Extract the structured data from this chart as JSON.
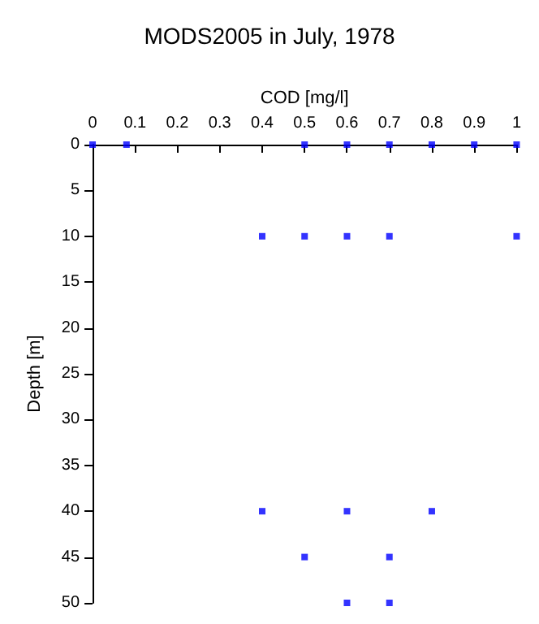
{
  "chart_data": {
    "type": "scatter",
    "title": "MODS2005 in July, 1978",
    "xlabel": "COD [mg/l]",
    "ylabel": "Depth [m]",
    "series": [
      {
        "color": "#0000ff",
        "x": [
          0,
          0.08,
          0.5,
          0.6,
          0.7,
          0.8,
          0.9,
          1.0,
          0.4,
          0.5,
          0.6,
          0.7,
          1.0,
          0.4,
          0.6,
          0.8,
          0.5,
          0.7,
          0.6,
          0.7
        ],
        "values": [
          0,
          0,
          0,
          0,
          0,
          0,
          0,
          0,
          10,
          10,
          10,
          10,
          10,
          40,
          40,
          40,
          45,
          45,
          50,
          50
        ]
      }
    ],
    "xlim": [
      0,
      1
    ],
    "xticks": [
      0,
      0.1,
      0.2,
      0.3,
      0.4,
      0.5,
      0.6,
      0.7,
      0.8,
      0.9,
      1
    ],
    "ylim": [
      50,
      0
    ],
    "yticks": [
      0,
      5,
      10,
      15,
      20,
      25,
      30,
      35,
      40,
      45,
      50
    ],
    "grid": false,
    "marker": "square"
  }
}
